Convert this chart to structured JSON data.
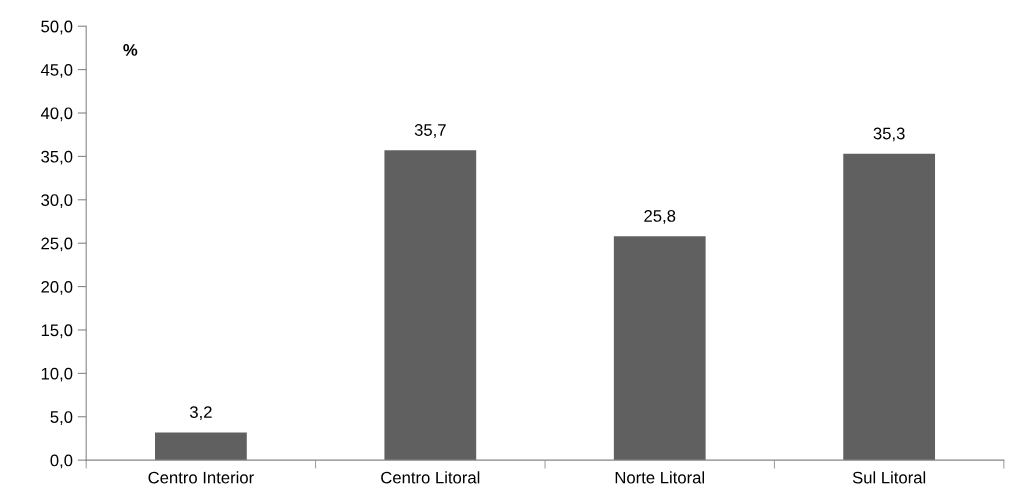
{
  "chart_data": {
    "type": "bar",
    "ylabel": "%",
    "categories": [
      "Centro Interior",
      "Centro Litoral",
      "Norte Litoral",
      "Sul Litoral"
    ],
    "values": [
      3.2,
      35.7,
      25.8,
      35.3
    ],
    "value_labels": [
      "3,2",
      "35,7",
      "25,8",
      "35,3"
    ],
    "color": "#606060",
    "ylim": [
      0,
      50
    ],
    "yticks": [
      {
        "value": 0,
        "label": "0,0"
      },
      {
        "value": 5,
        "label": "5,0"
      },
      {
        "value": 10,
        "label": "10,0"
      },
      {
        "value": 15,
        "label": "15,0"
      },
      {
        "value": 20,
        "label": "20,0"
      },
      {
        "value": 25,
        "label": "25,0"
      },
      {
        "value": 30,
        "label": "30,0"
      },
      {
        "value": 35,
        "label": "35,0"
      },
      {
        "value": 40,
        "label": "40,0"
      },
      {
        "value": 45,
        "label": "45,0"
      },
      {
        "value": 50,
        "label": "50,0"
      }
    ],
    "grid": false,
    "legend": false
  }
}
